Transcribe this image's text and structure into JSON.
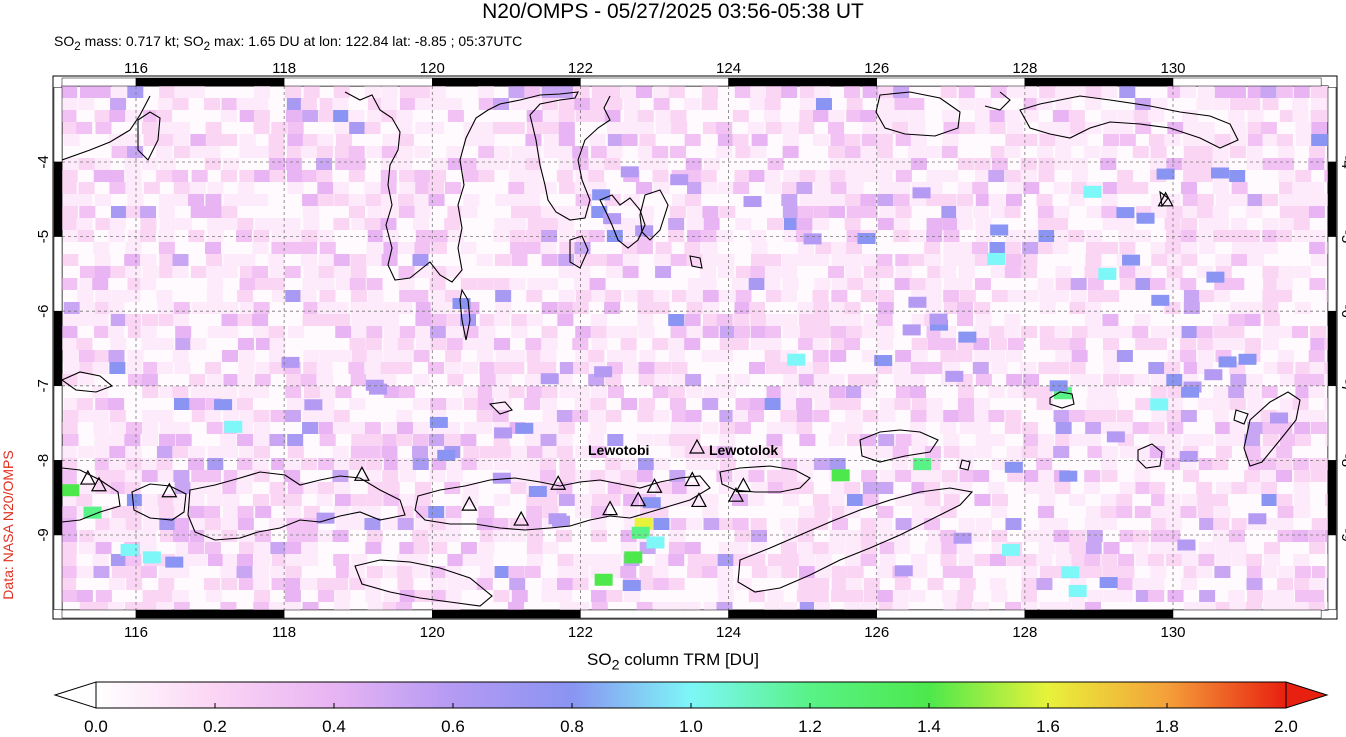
{
  "header": {
    "title": "N20/OMPS - 05/27/2025 03:56-05:38 UT",
    "subtitle_html": "SO<sub>2</sub> mass: 0.717 kt; SO<sub>2</sub> max: 1.65 DU at lon: 122.84 lat: -8.85 ; 05:37UTC"
  },
  "credit": "Data: NASA N20/OMPS",
  "map": {
    "lon_range": [
      115,
      132
    ],
    "lat_range": [
      -10,
      -3
    ],
    "lon_ticks": [
      "116",
      "118",
      "120",
      "122",
      "124",
      "126",
      "128",
      "130"
    ],
    "lat_ticks": [
      "-4",
      "-5",
      "-6",
      "-7",
      "-8",
      "-9"
    ],
    "volcanoes": [
      {
        "name": "Lewotobi",
        "lon": 122.78,
        "lat": -8.54
      },
      {
        "name": "Lewotolok",
        "lon": 123.51,
        "lat": -8.27
      }
    ],
    "max_point": {
      "lon": 122.84,
      "lat": -8.85,
      "value": 1.65
    }
  },
  "colorbar": {
    "label_html": "SO<sub>2</sub> column TRM [DU]",
    "min": 0.0,
    "max": 2.0,
    "ticks": [
      "0.0",
      "0.2",
      "0.4",
      "0.6",
      "0.8",
      "1.0",
      "1.2",
      "1.4",
      "1.6",
      "1.8",
      "2.0"
    ],
    "colors": [
      "#ffffff",
      "#fbd5f4",
      "#e8b4f3",
      "#b49af3",
      "#8a94f2",
      "#7df7f7",
      "#58f287",
      "#4de84c",
      "#e8f23a",
      "#f4a03a",
      "#e82010"
    ]
  }
}
